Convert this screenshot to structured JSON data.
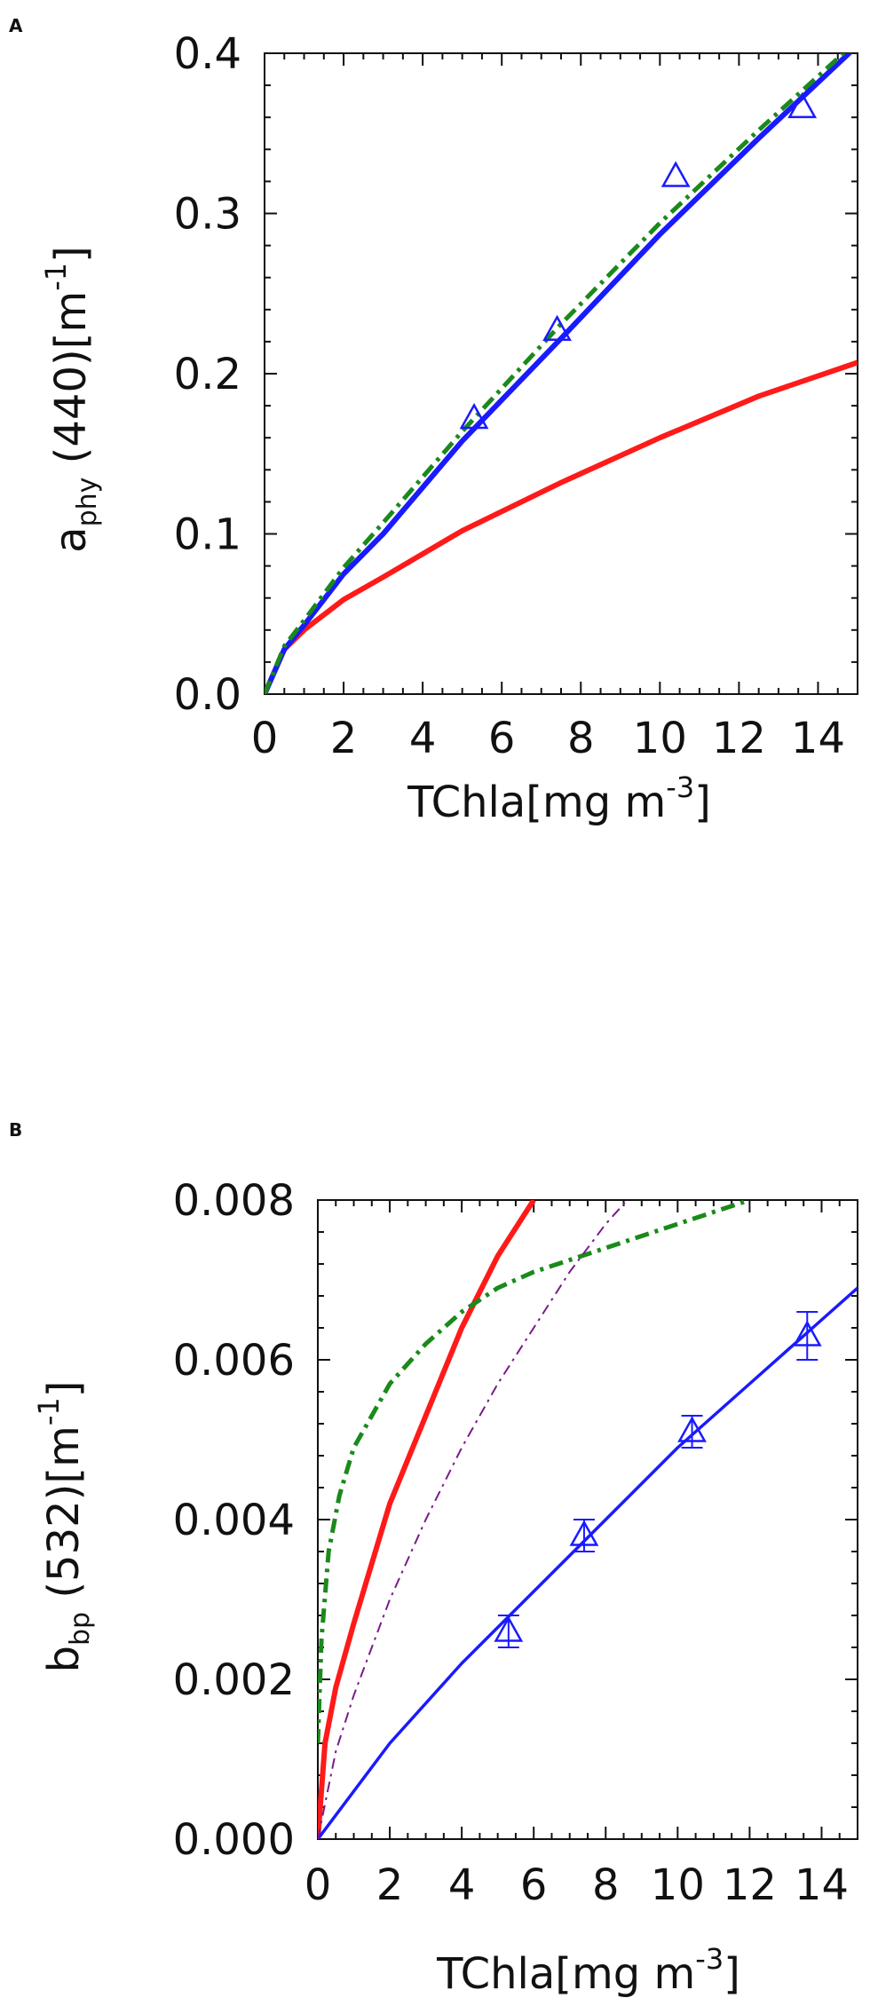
{
  "chart_data": [
    {
      "panel": "A",
      "type": "line",
      "xlabel": {
        "main": "TChla[mg m",
        "sup": "-3",
        "tail": "]"
      },
      "ylabel": {
        "pre": "a",
        "sub": "phy",
        "main": " (440)[m",
        "sup": "-1",
        "tail": "]"
      },
      "xlim": [
        0,
        15
      ],
      "ylim": [
        0,
        0.4
      ],
      "xticks": [
        0,
        2,
        4,
        6,
        8,
        10,
        12,
        14
      ],
      "xtick_labels": [
        "0",
        "2",
        "4",
        "6",
        "8",
        "10",
        "12",
        "14"
      ],
      "yticks": [
        0,
        0.1,
        0.2,
        0.3,
        0.4
      ],
      "ytick_labels": [
        "0.0",
        "0.1",
        "0.2",
        "0.3",
        "0.4"
      ],
      "grid": false,
      "series": [
        {
          "color": "#ff1a1a",
          "style": "solid-thick",
          "x": [
            0,
            0.5,
            1,
            2,
            3,
            5,
            7.5,
            10,
            12.5,
            15
          ],
          "y": [
            0,
            0.028,
            0.04,
            0.059,
            0.073,
            0.102,
            0.132,
            0.16,
            0.186,
            0.207
          ]
        },
        {
          "color": "#1a1aff",
          "style": "solid-thick",
          "x": [
            0,
            0.5,
            1,
            2,
            3,
            5,
            7.5,
            10,
            12.5,
            15
          ],
          "y": [
            0,
            0.028,
            0.043,
            0.075,
            0.1,
            0.158,
            0.222,
            0.287,
            0.347,
            0.405
          ]
        },
        {
          "color": "#1a8a1a",
          "style": "dashdot-thick",
          "x": [
            0,
            0.5,
            1,
            2,
            3,
            5,
            7.5,
            10,
            12.5,
            15
          ],
          "y": [
            0,
            0.03,
            0.046,
            0.079,
            0.107,
            0.164,
            0.231,
            0.294,
            0.352,
            0.408
          ]
        },
        {
          "color": "#1a1aff",
          "style": "triangles",
          "x": [
            5.3,
            7.4,
            10.4,
            13.6
          ],
          "y": [
            0.172,
            0.227,
            0.323,
            0.366
          ]
        }
      ]
    },
    {
      "panel": "B",
      "type": "line",
      "xlabel": {
        "main": "TChla[mg m",
        "sup": "-3",
        "tail": "]"
      },
      "ylabel": {
        "pre": "b",
        "sub": "bp",
        "main": " (532)[m",
        "sup": "-1",
        "tail": "]"
      },
      "xlim": [
        0,
        15
      ],
      "ylim": [
        0,
        0.008
      ],
      "xticks": [
        0,
        2,
        4,
        6,
        8,
        10,
        12,
        14
      ],
      "xtick_labels": [
        "0",
        "2",
        "4",
        "6",
        "8",
        "10",
        "12",
        "14"
      ],
      "yticks": [
        0,
        0.002,
        0.004,
        0.006,
        0.008
      ],
      "ytick_labels": [
        "0.000",
        "0.002",
        "0.004",
        "0.006",
        "0.008"
      ],
      "grid": false,
      "series": [
        {
          "color": "#ff1a1a",
          "style": "solid-thick",
          "x": [
            0,
            0.2,
            0.5,
            1,
            2,
            3,
            4,
            5,
            6
          ],
          "y": [
            0,
            0.0012,
            0.0019,
            0.0027,
            0.0042,
            0.0053,
            0.0064,
            0.0073,
            0.008
          ]
        },
        {
          "color": "#1a1aff",
          "style": "solid",
          "x": [
            0,
            2,
            4,
            6,
            8,
            10,
            12,
            14,
            15
          ],
          "y": [
            0,
            0.0012,
            0.0022,
            0.0031,
            0.004,
            0.0049,
            0.0057,
            0.0065,
            0.0069
          ]
        },
        {
          "color": "#1a8a1a",
          "style": "dashdot-thick",
          "x": [
            0,
            0.1,
            0.3,
            0.6,
            1,
            2,
            3,
            4,
            5,
            6,
            8,
            10,
            12
          ],
          "y": [
            0.0012,
            0.0025,
            0.0036,
            0.0043,
            0.0049,
            0.0057,
            0.0062,
            0.0066,
            0.0069,
            0.0071,
            0.0074,
            0.0077,
            0.008
          ]
        },
        {
          "color": "#7a1a8a",
          "style": "dashdot-thin",
          "x": [
            0,
            0.5,
            1,
            2,
            3,
            4,
            5,
            6,
            7,
            8,
            9
          ],
          "y": [
            0,
            0.0011,
            0.0018,
            0.003,
            0.004,
            0.0049,
            0.0057,
            0.0064,
            0.0071,
            0.0077,
            0.0082
          ]
        },
        {
          "color": "#1a1aff",
          "style": "triangles-errorbars",
          "x": [
            5.3,
            7.4,
            10.4,
            13.6
          ],
          "y": [
            0.0026,
            0.0038,
            0.0051,
            0.0063
          ],
          "err": [
            0.0002,
            0.0002,
            0.0002,
            0.0003
          ]
        }
      ]
    }
  ]
}
